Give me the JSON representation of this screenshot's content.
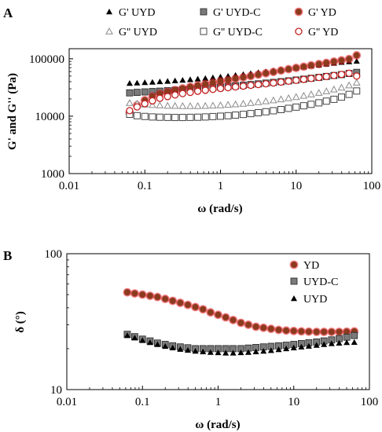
{
  "colors": {
    "yd_fill": "#8b3a1e",
    "yd_glow": "#e8101c",
    "yd_open_stroke": "#c41e1e",
    "uydc_fill": "#7a7a7a",
    "uyd_fill": "#000000",
    "open_stroke": "#444444",
    "axis": "#000000"
  },
  "chart_data": [
    {
      "panel": "A",
      "type": "scatter",
      "xlabel": "ω (rad/s)",
      "ylabel": "G' and G'' (Pa)",
      "xscale": "log",
      "yscale": "log",
      "xlim": [
        0.01,
        100
      ],
      "ylim": [
        1000,
        150000
      ],
      "xticks": [
        0.01,
        0.1,
        1,
        10,
        100
      ],
      "xtick_labels": [
        "0.01",
        "0.1",
        "1",
        "10",
        "100"
      ],
      "yticks": [
        1000,
        10000,
        100000
      ],
      "ytick_labels": [
        "1000",
        "10000",
        "100000"
      ],
      "legend_position": "top",
      "x": [
        0.063,
        0.079,
        0.1,
        0.126,
        0.158,
        0.2,
        0.251,
        0.316,
        0.398,
        0.501,
        0.631,
        0.794,
        1.0,
        1.26,
        1.58,
        2.0,
        2.51,
        3.16,
        3.98,
        5.01,
        6.31,
        7.94,
        10.0,
        12.6,
        15.8,
        20.0,
        25.1,
        31.6,
        39.8,
        50.1,
        63.1
      ],
      "series": [
        {
          "name": "G' UYD",
          "marker": "triangle-filled",
          "values": [
            37500,
            38000,
            38700,
            39200,
            40000,
            40700,
            41500,
            42500,
            43500,
            44500,
            45700,
            47000,
            48500,
            50000,
            51700,
            53500,
            55500,
            57500,
            59500,
            62000,
            64500,
            67000,
            69500,
            72500,
            75500,
            78000,
            81000,
            84000,
            87000,
            89000,
            91000
          ]
        },
        {
          "name": "G' UYD-C",
          "marker": "square-filled",
          "values": [
            25500,
            26000,
            26500,
            26900,
            27300,
            27800,
            28300,
            28800,
            29400,
            30000,
            30700,
            31400,
            32200,
            33000,
            33800,
            34600,
            35600,
            36600,
            37700,
            38800,
            40000,
            41300,
            42700,
            44200,
            45800,
            47500,
            49300,
            51200,
            53000,
            55500,
            58000
          ]
        },
        {
          "name": "G' YD",
          "marker": "circle-filled",
          "values": [
            11500,
            15500,
            19000,
            22000,
            24500,
            26500,
            28500,
            30500,
            32500,
            34500,
            36500,
            38500,
            40500,
            42500,
            45000,
            47500,
            50000,
            53000,
            56000,
            59000,
            62500,
            66000,
            69500,
            73000,
            77000,
            81000,
            85000,
            89500,
            94000,
            99000,
            115000
          ]
        },
        {
          "name": "G'' UYD",
          "marker": "triangle-open",
          "values": [
            17000,
            16500,
            16000,
            15700,
            15400,
            15200,
            15100,
            15000,
            15000,
            15000,
            15100,
            15300,
            15500,
            15800,
            16100,
            16500,
            17000,
            17600,
            18200,
            18900,
            19700,
            20600,
            21600,
            22700,
            24000,
            25500,
            27200,
            29200,
            31500,
            34500,
            38500
          ]
        },
        {
          "name": "G'' UYD-C",
          "marker": "square-open",
          "values": [
            10800,
            10200,
            9900,
            9700,
            9600,
            9550,
            9500,
            9500,
            9550,
            9600,
            9700,
            9850,
            10000,
            10200,
            10450,
            10750,
            11100,
            11500,
            11950,
            12450,
            13050,
            13700,
            14400,
            15200,
            16100,
            17100,
            18300,
            19700,
            21500,
            24000,
            27500
          ]
        },
        {
          "name": "G'' YD",
          "marker": "circle-open",
          "values": [
            12500,
            14500,
            16500,
            18500,
            20500,
            22000,
            23500,
            24800,
            26000,
            27200,
            28300,
            29400,
            30400,
            31400,
            32400,
            33400,
            34500,
            35600,
            36800,
            38000,
            39300,
            40700,
            42200,
            43800,
            45500,
            47300,
            49200,
            51200,
            53500,
            56000,
            50000
          ]
        }
      ]
    },
    {
      "panel": "B",
      "type": "scatter",
      "xlabel": "ω (rad/s)",
      "ylabel": "δ (°)",
      "xscale": "log",
      "yscale": "log",
      "xlim": [
        0.01,
        100
      ],
      "ylim": [
        10,
        100
      ],
      "xticks": [
        0.01,
        0.1,
        1,
        10,
        100
      ],
      "xtick_labels": [
        "0.01",
        "0.1",
        "1",
        "10",
        "100"
      ],
      "yticks": [
        10,
        100
      ],
      "ytick_labels": [
        "10",
        "100"
      ],
      "legend_position": "top-right",
      "x": [
        0.063,
        0.079,
        0.1,
        0.126,
        0.158,
        0.2,
        0.251,
        0.316,
        0.398,
        0.501,
        0.631,
        0.794,
        1.0,
        1.26,
        1.58,
        2.0,
        2.51,
        3.16,
        3.98,
        5.01,
        6.31,
        7.94,
        10.0,
        12.6,
        15.8,
        20.0,
        25.1,
        31.6,
        39.8,
        50.1,
        63.1
      ],
      "series": [
        {
          "name": "YD",
          "marker": "circle-filled",
          "values": [
            52,
            51,
            50,
            49,
            48,
            46.5,
            45,
            43.5,
            42,
            40.5,
            39,
            37,
            35.5,
            34,
            32.5,
            31,
            30,
            29,
            28.5,
            28,
            27.5,
            27.2,
            27,
            26.8,
            26.7,
            26.6,
            26.6,
            26.6,
            26.6,
            26.7,
            26.8
          ]
        },
        {
          "name": "UYD-C",
          "marker": "square-filled",
          "values": [
            25.5,
            24.5,
            23.5,
            22.8,
            22,
            21.5,
            21,
            20.6,
            20.3,
            20,
            20,
            20,
            20,
            20,
            20,
            20,
            20.2,
            20.4,
            20.6,
            20.8,
            21,
            21.2,
            21.5,
            21.8,
            22.1,
            22.4,
            22.8,
            23.2,
            23.7,
            24.3,
            25
          ]
        },
        {
          "name": "UYD",
          "marker": "triangle-filled",
          "values": [
            25,
            24,
            23,
            22.2,
            21.5,
            20.8,
            20.3,
            19.8,
            19.5,
            19.2,
            19,
            18.8,
            18.7,
            18.6,
            18.6,
            18.7,
            18.8,
            19,
            19.2,
            19.4,
            19.7,
            20,
            20.3,
            20.6,
            20.9,
            21.2,
            21.5,
            21.8,
            22,
            22.2,
            22.3
          ]
        }
      ]
    }
  ]
}
